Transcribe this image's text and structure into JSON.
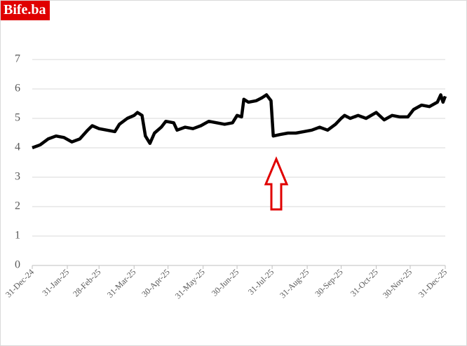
{
  "logo": "Bife.ba",
  "chart_data": {
    "type": "line",
    "x": [
      "2024-12-31",
      "2025-01-07",
      "2025-01-14",
      "2025-01-21",
      "2025-01-28",
      "2025-02-04",
      "2025-02-11",
      "2025-02-18",
      "2025-02-22",
      "2025-02-28",
      "2025-03-07",
      "2025-03-14",
      "2025-03-18",
      "2025-03-25",
      "2025-03-31",
      "2025-04-03",
      "2025-04-07",
      "2025-04-10",
      "2025-04-14",
      "2025-04-18",
      "2025-04-24",
      "2025-04-28",
      "2025-05-05",
      "2025-05-08",
      "2025-05-15",
      "2025-05-22",
      "2025-05-29",
      "2025-06-05",
      "2025-06-12",
      "2025-06-19",
      "2025-06-26",
      "2025-06-30",
      "2025-07-04",
      "2025-07-06",
      "2025-07-10",
      "2025-07-17",
      "2025-07-22",
      "2025-07-26",
      "2025-07-30",
      "2025-08-01",
      "2025-08-07",
      "2025-08-14",
      "2025-08-21",
      "2025-08-28",
      "2025-09-04",
      "2025-09-11",
      "2025-09-18",
      "2025-09-25",
      "2025-09-30",
      "2025-10-03",
      "2025-10-08",
      "2025-10-15",
      "2025-10-22",
      "2025-10-31",
      "2025-11-07",
      "2025-11-14",
      "2025-11-21",
      "2025-11-28",
      "2025-12-03",
      "2025-12-10",
      "2025-12-17",
      "2025-12-24",
      "2025-12-27",
      "2025-12-29",
      "2025-12-31"
    ],
    "series": [
      {
        "color": "#000000",
        "values": [
          4.0,
          4.1,
          4.3,
          4.4,
          4.35,
          4.2,
          4.3,
          4.6,
          4.75,
          4.65,
          4.6,
          4.55,
          4.8,
          5.0,
          5.1,
          5.2,
          5.1,
          4.4,
          4.15,
          4.5,
          4.7,
          4.9,
          4.85,
          4.6,
          4.7,
          4.65,
          4.75,
          4.9,
          4.85,
          4.8,
          4.85,
          5.1,
          5.05,
          5.65,
          5.55,
          5.6,
          5.7,
          5.8,
          5.6,
          4.4,
          4.45,
          4.5,
          4.5,
          4.55,
          4.6,
          4.7,
          4.6,
          4.8,
          5.0,
          5.1,
          5.0,
          5.1,
          5.0,
          5.2,
          4.95,
          5.1,
          5.05,
          5.05,
          5.3,
          5.45,
          5.4,
          5.55,
          5.8,
          5.55,
          5.75
        ]
      }
    ],
    "xlim": [
      "2024-12-31",
      "2025-12-31"
    ],
    "xticks": [
      {
        "value": "2024-12-31",
        "label": "31-Dec-24"
      },
      {
        "value": "2025-01-31",
        "label": "31-Jan-25"
      },
      {
        "value": "2025-02-28",
        "label": "28-Feb-25"
      },
      {
        "value": "2025-03-31",
        "label": "31-Mar-25"
      },
      {
        "value": "2025-04-30",
        "label": "30-Apr-25"
      },
      {
        "value": "2025-05-31",
        "label": "31-May-25"
      },
      {
        "value": "2025-06-30",
        "label": "30-Jun-25"
      },
      {
        "value": "2025-07-31",
        "label": "31-Jul-25"
      },
      {
        "value": "2025-08-31",
        "label": "31-Aug-25"
      },
      {
        "value": "2025-09-30",
        "label": "30-Sep-25"
      },
      {
        "value": "2025-10-31",
        "label": "31-Oct-25"
      },
      {
        "value": "2025-11-30",
        "label": "30-Nov-25"
      },
      {
        "value": "2025-12-31",
        "label": "31-Dec-25"
      }
    ],
    "ylim": [
      0,
      7
    ],
    "yticks": [
      0,
      1,
      2,
      3,
      4,
      5,
      6,
      7
    ],
    "grid": true
  }
}
